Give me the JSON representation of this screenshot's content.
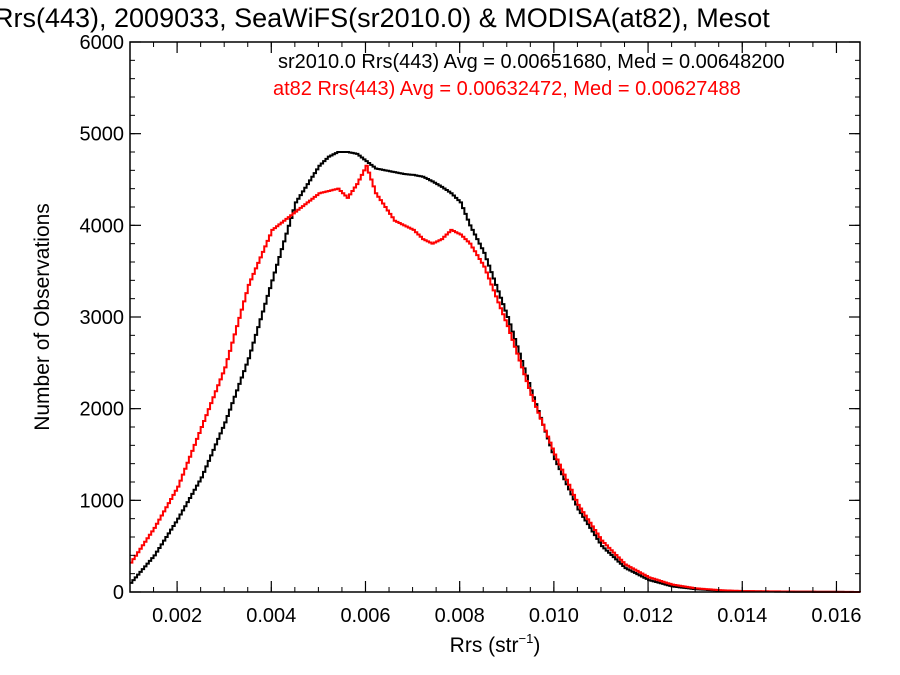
{
  "chart_data": {
    "type": "line",
    "title": "Rrs(443), 2009033, SeaWiFS(sr2010.0) & MODISA(at82), Mesot",
    "xlabel": "Rrs (str",
    "xlabel_sup": "−1",
    "xlabel_close": ")",
    "ylabel": "Number of Observations",
    "xlim": [
      0.001,
      0.0165
    ],
    "ylim": [
      0,
      6000
    ],
    "x_ticks": [
      0.002,
      0.004,
      0.006,
      0.008,
      0.01,
      0.012,
      0.014,
      0.016
    ],
    "x_tick_labels": [
      "0.002",
      "0.004",
      "0.006",
      "0.008",
      "0.010",
      "0.012",
      "0.014",
      "0.016"
    ],
    "y_ticks": [
      0,
      1000,
      2000,
      3000,
      4000,
      5000,
      6000
    ],
    "y_tick_labels": [
      "0",
      "1000",
      "2000",
      "3000",
      "4000",
      "5000",
      "6000"
    ],
    "grid": false,
    "legend": "top-right",
    "series": [
      {
        "name": "sr2010.0 Rrs(443) Avg = 0.00651680, Med = 0.00648200",
        "color": "#000000",
        "x": [
          0.001,
          0.0015,
          0.002,
          0.0025,
          0.003,
          0.0035,
          0.004,
          0.0045,
          0.005,
          0.0052,
          0.0054,
          0.0056,
          0.0058,
          0.006,
          0.0062,
          0.0064,
          0.0066,
          0.0068,
          0.007,
          0.0072,
          0.0074,
          0.0076,
          0.0078,
          0.008,
          0.0082,
          0.0085,
          0.009,
          0.0095,
          0.01,
          0.0105,
          0.011,
          0.0115,
          0.012,
          0.0125,
          0.013,
          0.0135,
          0.014,
          0.015,
          0.016,
          0.0165
        ],
        "y": [
          100,
          400,
          800,
          1250,
          1850,
          2550,
          3400,
          4250,
          4650,
          4750,
          4800,
          4800,
          4780,
          4700,
          4620,
          4600,
          4580,
          4560,
          4550,
          4530,
          4480,
          4420,
          4350,
          4250,
          4000,
          3700,
          3000,
          2200,
          1450,
          900,
          500,
          260,
          130,
          60,
          30,
          15,
          8,
          3,
          1,
          0
        ]
      },
      {
        "name": "at82 Rrs(443) Avg = 0.00632472, Med = 0.00627488",
        "color": "#ff0000",
        "x": [
          0.001,
          0.0015,
          0.002,
          0.0025,
          0.003,
          0.0035,
          0.004,
          0.0045,
          0.005,
          0.0054,
          0.0056,
          0.0058,
          0.006,
          0.0062,
          0.0064,
          0.0066,
          0.0068,
          0.007,
          0.0072,
          0.0074,
          0.0076,
          0.0078,
          0.008,
          0.0082,
          0.0085,
          0.009,
          0.0095,
          0.01,
          0.0105,
          0.011,
          0.0115,
          0.012,
          0.0125,
          0.013,
          0.0135,
          0.014,
          0.015,
          0.016,
          0.0165
        ],
        "y": [
          320,
          700,
          1150,
          1800,
          2450,
          3350,
          3950,
          4150,
          4350,
          4400,
          4300,
          4450,
          4650,
          4350,
          4200,
          4050,
          4000,
          3950,
          3850,
          3800,
          3850,
          3950,
          3900,
          3800,
          3550,
          2900,
          2150,
          1500,
          950,
          560,
          300,
          160,
          80,
          40,
          20,
          10,
          5,
          2,
          0
        ]
      }
    ]
  }
}
